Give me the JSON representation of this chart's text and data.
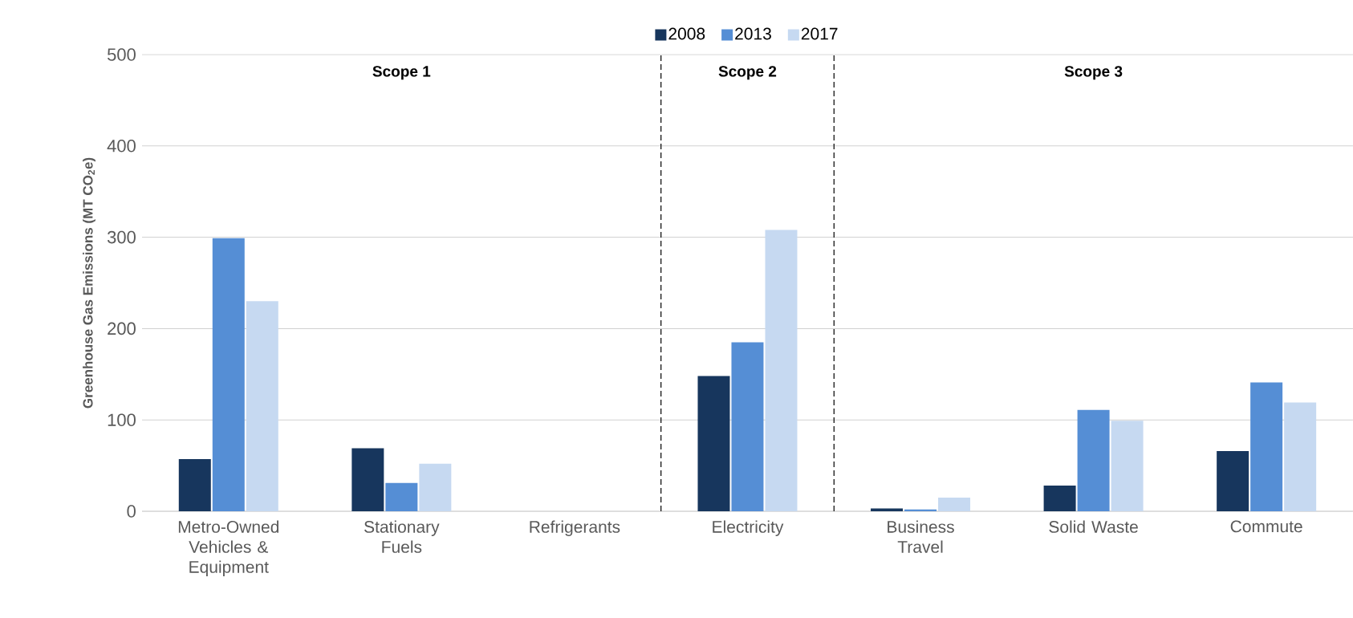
{
  "chart_data": {
    "type": "bar",
    "ylabel": "Greenhouse Gas Emissions (MT CO$_{2}$e)",
    "categories": [
      "Metro-Owned Vehicles & Equipment",
      "Stationary Fuels",
      "Refrigerants",
      "Electricity",
      "Business Travel",
      "Solid Waste",
      "Commute"
    ],
    "series": [
      {
        "name": "2008",
        "color": "#17365d",
        "values": [
          57,
          69,
          0,
          148,
          3,
          28,
          66
        ]
      },
      {
        "name": "2013",
        "color": "#558ed5",
        "values": [
          299,
          31,
          0,
          185,
          2,
          111,
          141
        ]
      },
      {
        "name": "2017",
        "color": "#c6d9f1",
        "values": [
          230,
          52,
          0,
          308,
          15,
          99,
          119
        ]
      }
    ],
    "ylim": [
      0,
      500
    ],
    "yticks": [
      0,
      100,
      200,
      300,
      400,
      500
    ],
    "grid": "y",
    "legend": "top",
    "annotations": [
      "Scope 1",
      "Scope 2",
      "Scope 3"
    ]
  }
}
